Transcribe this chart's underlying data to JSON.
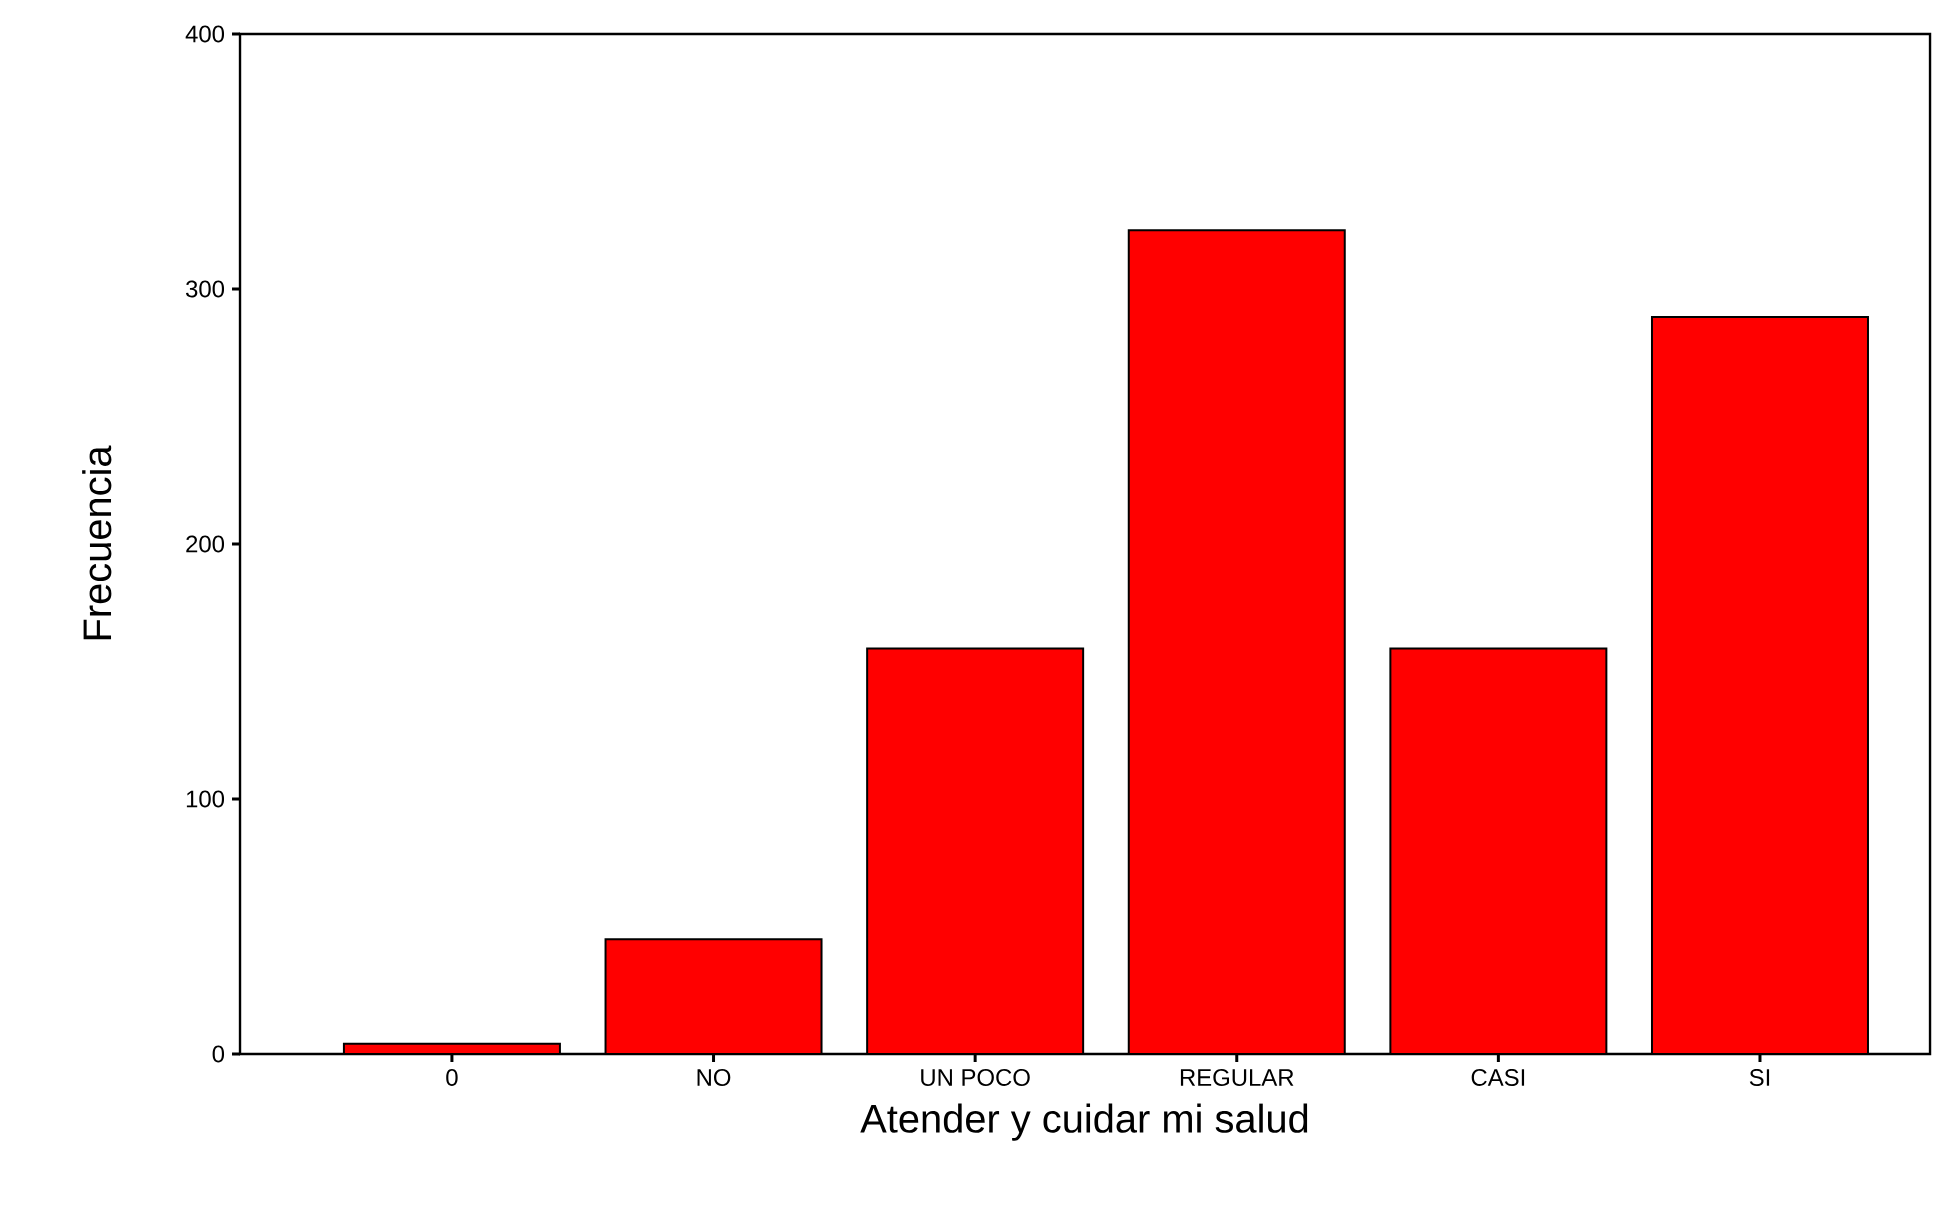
{
  "chart_data": {
    "type": "bar",
    "xlabel": "Atender y cuidar mi salud",
    "ylabel": "Frecuencia",
    "categories": [
      "0",
      "NO",
      "UN POCO",
      "REGULAR",
      "CASI",
      "SI"
    ],
    "values": [
      4,
      45,
      159,
      323,
      159,
      289
    ],
    "color": "#ff0000",
    "ylim": [
      0,
      400
    ],
    "yticks": [
      0,
      100,
      200,
      300,
      400
    ],
    "grid": false
  }
}
